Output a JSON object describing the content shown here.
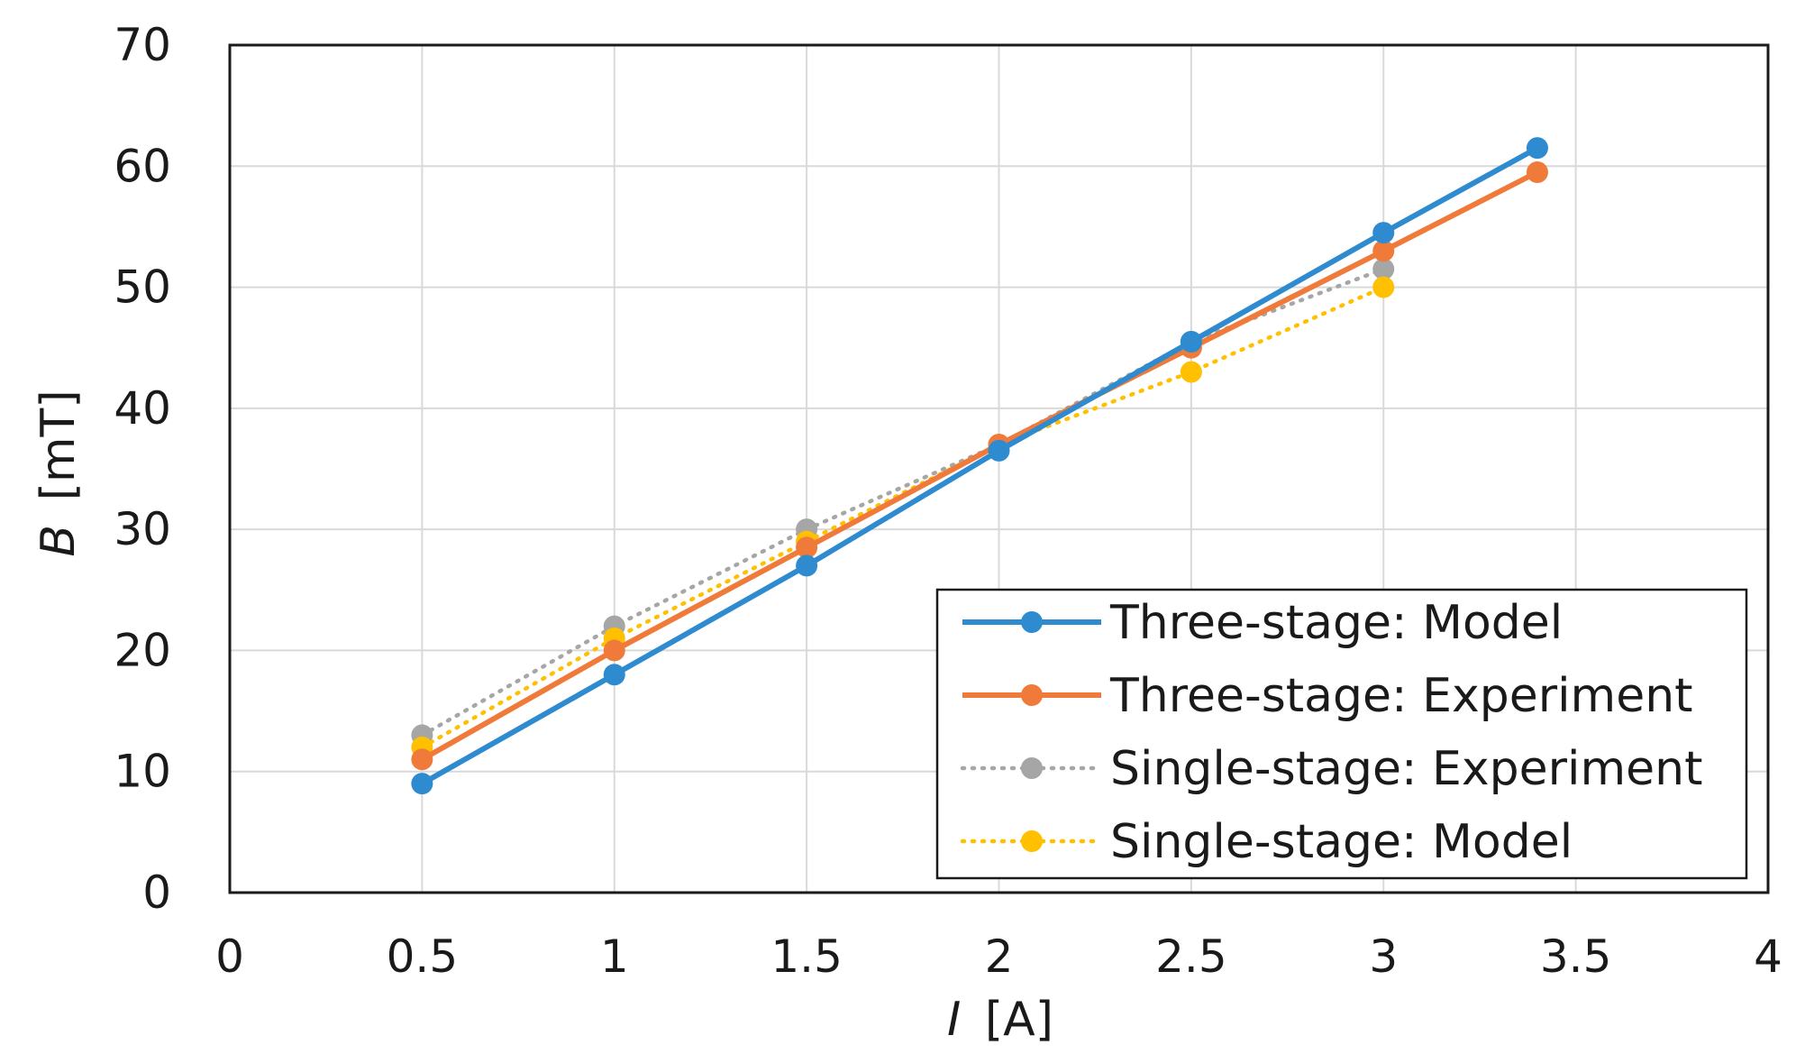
{
  "chart_data": {
    "type": "line",
    "xlabel": {
      "var": "I",
      "unit": "[A]"
    },
    "ylabel": {
      "var": "B",
      "unit": "[mT]"
    },
    "xlim": [
      0,
      4
    ],
    "ylim": [
      0,
      70
    ],
    "xticks": [
      "0",
      "0.5",
      "1",
      "1.5",
      "2",
      "2.5",
      "3",
      "3.5",
      "4"
    ],
    "yticks": [
      "0",
      "10",
      "20",
      "30",
      "40",
      "50",
      "60",
      "70"
    ],
    "grid": true,
    "legend_position": "bottom-right",
    "series": [
      {
        "name": "Three-stage: Model",
        "style": "solid",
        "color": "#2e8bd0",
        "x": [
          0.5,
          1,
          1.5,
          2,
          2.5,
          3,
          3.4
        ],
        "y": [
          9,
          18,
          27,
          36.5,
          45.5,
          54.5,
          61.5
        ]
      },
      {
        "name": "Three-stage: Experiment",
        "style": "solid",
        "color": "#f07a3a",
        "x": [
          0.5,
          1,
          1.5,
          2,
          2.5,
          3,
          3.4
        ],
        "y": [
          11,
          20,
          28.5,
          37,
          45,
          53,
          59.5
        ]
      },
      {
        "name": "Single-stage: Experiment",
        "style": "dotted",
        "color": "#a6a6a6",
        "x": [
          0.5,
          1,
          1.5,
          2,
          2.5,
          3
        ],
        "y": [
          13,
          22,
          30,
          37,
          45.5,
          51.5
        ]
      },
      {
        "name": "Single-stage: Model",
        "style": "dotted",
        "color": "#ffc000",
        "x": [
          0.5,
          1,
          1.5,
          2,
          2.5,
          3
        ],
        "y": [
          12,
          21,
          29,
          37,
          43,
          50
        ]
      }
    ]
  }
}
